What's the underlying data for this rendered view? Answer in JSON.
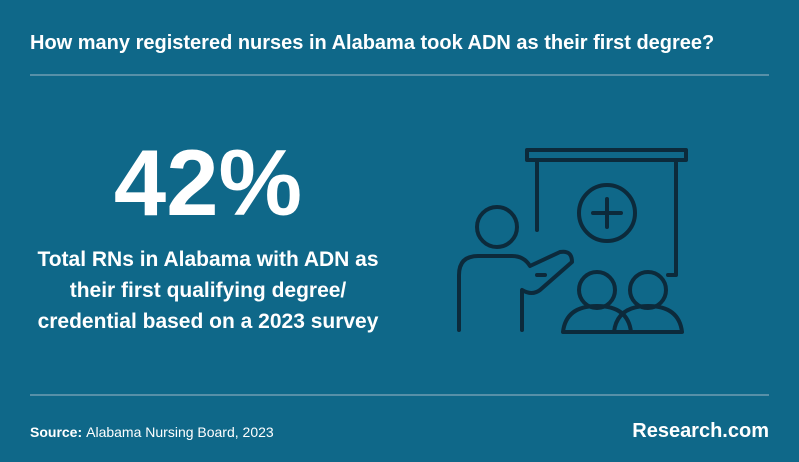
{
  "header": {
    "title": "How many registered nurses in Alabama took ADN as their first degree?"
  },
  "stat": {
    "value": "42%",
    "description": [
      "Total RNs in Alabama with ADN as",
      "their first qualifying degree/",
      "credential based on a 2023 survey"
    ]
  },
  "footer": {
    "source_label": "Source:",
    "source": "Alabama Nursing Board, 2023",
    "brand": "Research.com"
  }
}
